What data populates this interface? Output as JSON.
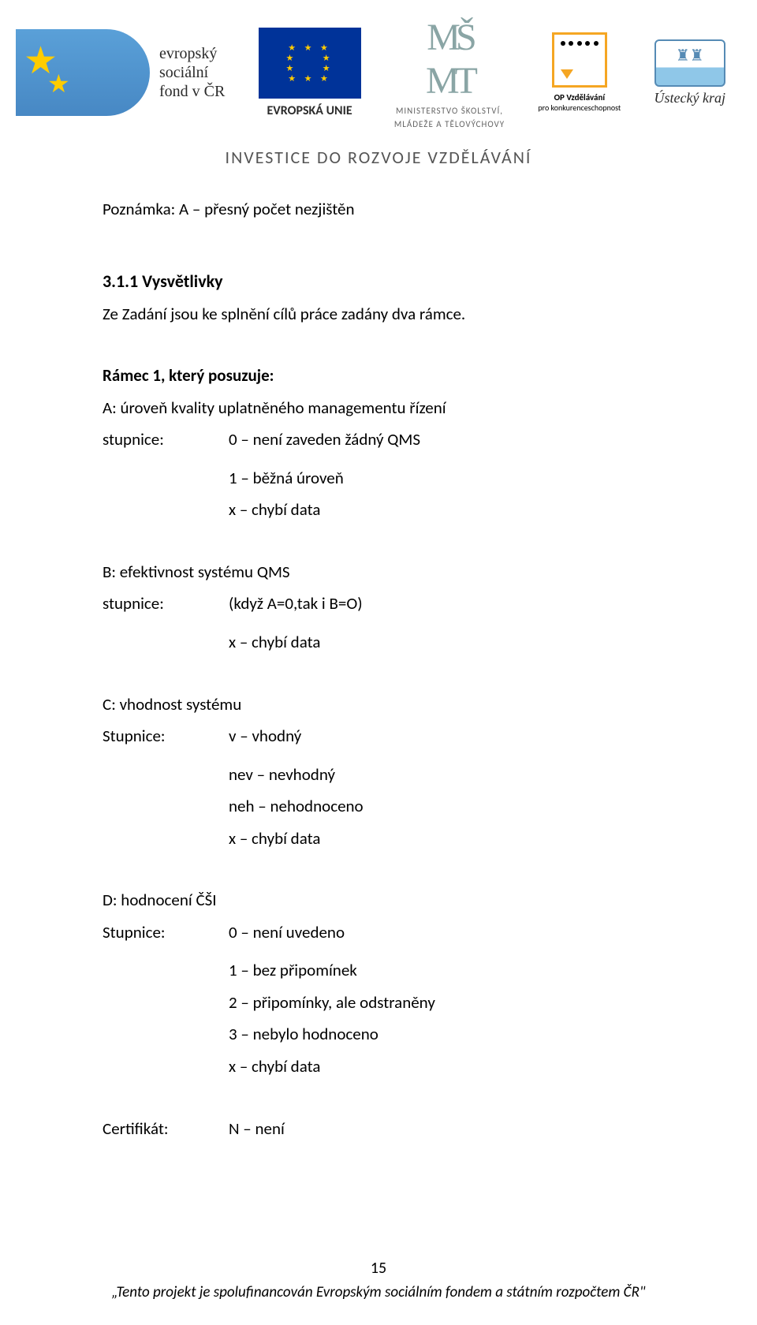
{
  "header": {
    "esf_line1": "evropský",
    "esf_line2": "sociální",
    "esf_line3": "fond v ČR",
    "eu_label": "EVROPSKÁ UNIE",
    "msmt_line1": "MINISTERSTVO ŠKOLSTVÍ,",
    "msmt_line2": "MLÁDEŽE A TĚLOVÝCHOVY",
    "op_title": "OP Vzdělávání",
    "op_sub": "pro konkurenceschopnost",
    "kraj": "Ústecký kraj",
    "banner": "INVESTICE DO ROZVOJE VZDĚLÁVÁNÍ"
  },
  "body": {
    "note": "Poznámka: A – přesný počet nezjištěn",
    "sec_num": "3.1.1 Vysvětlivky",
    "sec_intro": "Ze Zadání jsou ke splnění cílů práce zadány dva rámce.",
    "frame1_title": "Rámec 1, který posuzuje:",
    "a_title": "A: úroveň kvality uplatněného managementu řízení",
    "stupnice_label": "stupnice:",
    "a_v0": "0 – není zaveden žádný QMS",
    "a_v1": "1 – běžná úroveň",
    "chybi": "x – chybí data",
    "b_title": "B: efektivnost systému QMS",
    "b_v0": "(když A=0,tak i B=O)",
    "c_title": "C: vhodnost systému",
    "Stupnice_label": "Stupnice:",
    "c_v0": "v – vhodný",
    "c_v1": "nev – nevhodný",
    "c_v2": "neh – nehodnoceno",
    "d_title": "D: hodnocení ČŠI",
    "d_v0": "0 – není uvedeno",
    "d_v1": "1 – bez připomínek",
    "d_v2": "2 – připomínky, ale odstraněny",
    "d_v3": "3 – nebylo hodnoceno",
    "cert_label": "Certifikát:",
    "cert_val": "N – není"
  },
  "footer": {
    "page": "15",
    "note": "„Tento projekt je spolufinancován Evropským sociálním fondem a státním rozpočtem ČR\""
  }
}
